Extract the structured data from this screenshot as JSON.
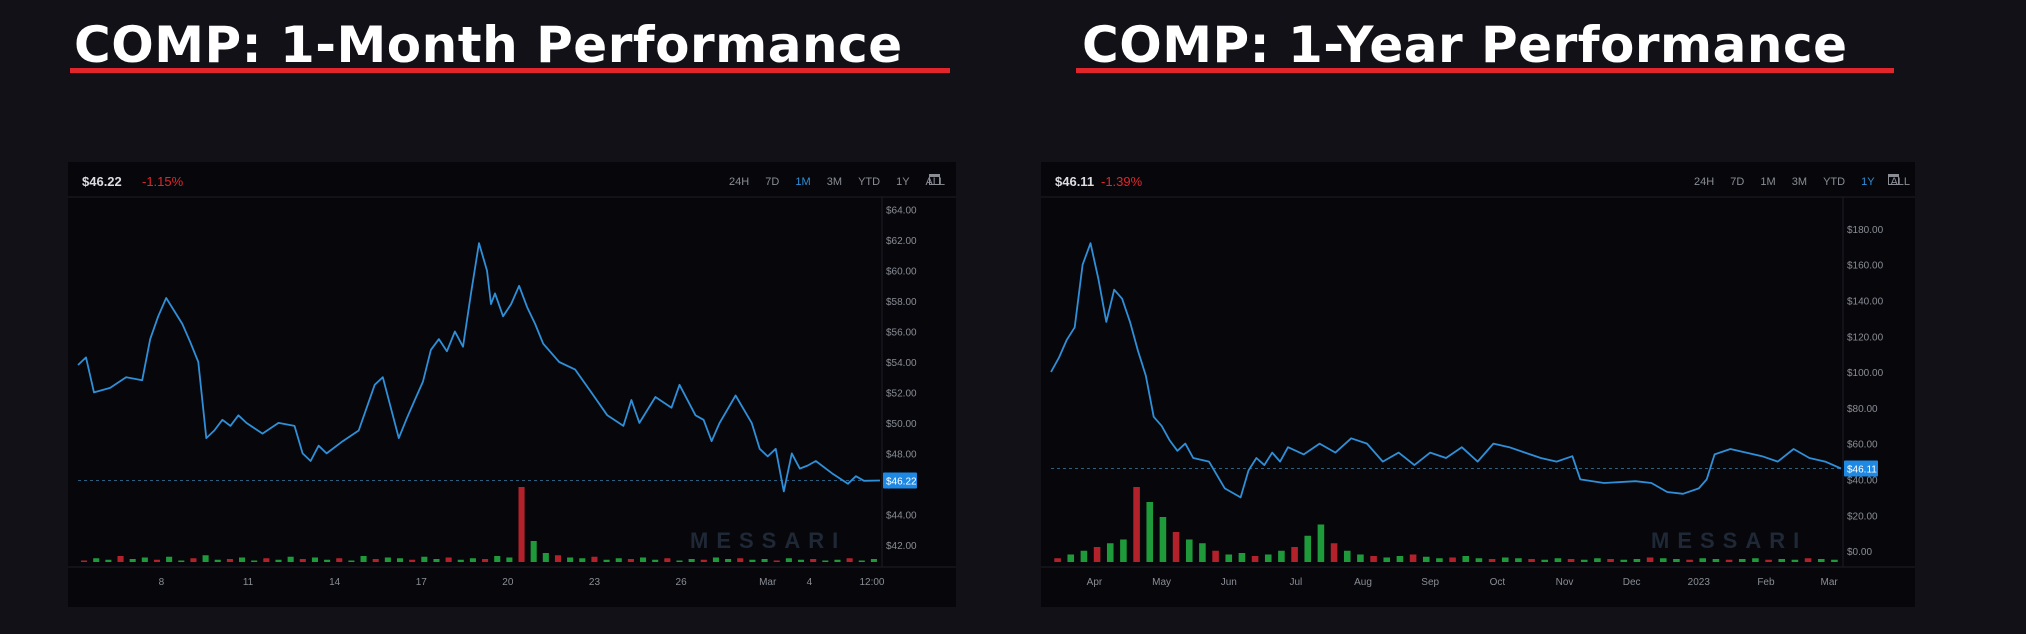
{
  "titles": [
    {
      "text": "COMP: 1-Month Performance"
    },
    {
      "text": "COMP: 1-Year Performance"
    }
  ],
  "colors": {
    "background": "#111117",
    "panel": "#07070b",
    "accent_red": "#e0262b",
    "line": "#2f8fd8",
    "active_range": "#2f8fd8",
    "negative": "#e0262b",
    "volume_green": "#1f9a3a",
    "volume_red": "#b3222a",
    "tag_bg": "#1e88e5"
  },
  "panels": [
    {
      "price": "$46.22",
      "change": "-1.15%",
      "ranges": [
        "24H",
        "7D",
        "1M",
        "3M",
        "YTD",
        "1Y",
        "ALL"
      ],
      "active_range": "1M",
      "calendar_icon": "calendar-icon",
      "watermark": "MESSARI",
      "current_tag": "$46.22"
    },
    {
      "price": "$46.11",
      "change": "-1.39%",
      "ranges": [
        "24H",
        "7D",
        "1M",
        "3M",
        "YTD",
        "1Y",
        "ALL"
      ],
      "active_range": "1Y",
      "calendar_icon": "calendar-icon",
      "watermark": "MESSARI",
      "current_tag": "$46.11"
    }
  ],
  "chart_data": [
    {
      "type": "line",
      "title": "COMP: 1-Month Performance",
      "ylim": [
        41,
        64.5
      ],
      "y_ticks": [
        64,
        62,
        60,
        58,
        56,
        54,
        52,
        50,
        48,
        46,
        44,
        42
      ],
      "y_tick_labels": [
        "$64.00",
        "$62.00",
        "$60.00",
        "$58.00",
        "$56.00",
        "$54.00",
        "$52.00",
        "$50.00",
        "$48.00",
        "$46.00",
        "$44.00",
        "$42.00"
      ],
      "x_tick_labels": [
        "8",
        "11",
        "14",
        "17",
        "20",
        "23",
        "26",
        "Mar",
        "4",
        "12:00"
      ],
      "x_tick_positions": [
        0.104,
        0.212,
        0.32,
        0.428,
        0.536,
        0.644,
        0.752,
        0.86,
        0.912,
        0.99
      ],
      "current_value": 46.22,
      "series": [
        {
          "x": [
            0,
            0.01,
            0.02,
            0.04,
            0.06,
            0.08,
            0.09,
            0.1,
            0.11,
            0.13,
            0.14,
            0.15,
            0.16,
            0.17,
            0.18,
            0.19,
            0.2,
            0.21,
            0.23,
            0.25,
            0.27,
            0.28,
            0.29,
            0.3,
            0.31,
            0.33,
            0.35,
            0.37,
            0.38,
            0.39,
            0.4,
            0.41,
            0.42,
            0.43,
            0.44,
            0.45,
            0.46,
            0.47,
            0.48,
            0.49,
            0.5,
            0.51,
            0.515,
            0.52,
            0.53,
            0.54,
            0.55,
            0.56,
            0.57,
            0.58,
            0.6,
            0.62,
            0.64,
            0.66,
            0.68,
            0.69,
            0.7,
            0.72,
            0.74,
            0.75,
            0.77,
            0.78,
            0.79,
            0.8,
            0.82,
            0.84,
            0.85,
            0.86,
            0.87,
            0.88,
            0.89,
            0.9,
            0.91,
            0.92,
            0.94,
            0.96,
            0.97,
            0.98,
            1.0
          ],
          "y": [
            53.8,
            54.3,
            52.0,
            52.3,
            53.0,
            52.8,
            55.5,
            57.0,
            58.2,
            56.5,
            55.3,
            54.0,
            49.0,
            49.5,
            50.2,
            49.8,
            50.5,
            50.0,
            49.3,
            50.0,
            49.8,
            48.0,
            47.5,
            48.5,
            48.0,
            48.8,
            49.5,
            52.5,
            53.0,
            51.0,
            49.0,
            50.3,
            51.5,
            52.7,
            54.8,
            55.5,
            54.7,
            56.0,
            55.0,
            58.5,
            61.8,
            60.0,
            57.8,
            58.5,
            57.0,
            57.8,
            59.0,
            57.6,
            56.5,
            55.2,
            54.0,
            53.5,
            52.0,
            50.5,
            49.8,
            51.5,
            50.0,
            51.7,
            51.0,
            52.5,
            50.5,
            50.2,
            48.8,
            50.0,
            51.8,
            50.0,
            48.3,
            47.8,
            48.3,
            45.5,
            48.0,
            47.0,
            47.2,
            47.5,
            46.7,
            46.0,
            46.5,
            46.2,
            46.22
          ]
        }
      ],
      "volume": [
        0.02,
        0.05,
        0.03,
        0.08,
        0.04,
        0.06,
        0.03,
        0.07,
        0.02,
        0.05,
        0.09,
        0.03,
        0.04,
        0.06,
        0.02,
        0.05,
        0.03,
        0.07,
        0.04,
        0.06,
        0.03,
        0.05,
        0.02,
        0.08,
        0.04,
        0.06,
        0.05,
        0.03,
        0.07,
        0.04,
        0.06,
        0.03,
        0.05,
        0.04,
        0.08,
        0.06,
        1.0,
        0.28,
        0.12,
        0.09,
        0.06,
        0.05,
        0.07,
        0.03,
        0.05,
        0.04,
        0.06,
        0.03,
        0.05,
        0.02,
        0.04,
        0.03,
        0.06,
        0.04,
        0.05,
        0.03,
        0.04,
        0.02,
        0.05,
        0.03,
        0.04,
        0.02,
        0.03,
        0.05,
        0.02,
        0.04
      ]
    },
    {
      "type": "line",
      "title": "COMP: 1-Year Performance",
      "ylim": [
        -5,
        195
      ],
      "y_ticks": [
        180,
        160,
        140,
        120,
        100,
        80,
        60,
        40,
        20,
        0
      ],
      "y_tick_labels": [
        "$180.00",
        "$160.00",
        "$140.00",
        "$120.00",
        "$100.00",
        "$80.00",
        "$60.00",
        "$40.00",
        "$20.00",
        "$0.00"
      ],
      "x_tick_labels": [
        "Apr",
        "May",
        "Jun",
        "Jul",
        "Aug",
        "Sep",
        "Oct",
        "Nov",
        "Dec",
        "2023",
        "Feb",
        "Mar"
      ],
      "x_tick_positions": [
        0.055,
        0.14,
        0.225,
        0.31,
        0.395,
        0.48,
        0.565,
        0.65,
        0.735,
        0.82,
        0.905,
        0.985
      ],
      "current_value": 46.11,
      "series": [
        {
          "x": [
            0,
            0.01,
            0.02,
            0.03,
            0.04,
            0.05,
            0.06,
            0.07,
            0.08,
            0.09,
            0.1,
            0.11,
            0.12,
            0.13,
            0.14,
            0.15,
            0.16,
            0.17,
            0.18,
            0.2,
            0.22,
            0.24,
            0.25,
            0.26,
            0.27,
            0.28,
            0.29,
            0.3,
            0.32,
            0.34,
            0.36,
            0.38,
            0.4,
            0.42,
            0.44,
            0.46,
            0.48,
            0.5,
            0.52,
            0.54,
            0.56,
            0.58,
            0.6,
            0.62,
            0.64,
            0.66,
            0.67,
            0.7,
            0.74,
            0.76,
            0.78,
            0.8,
            0.82,
            0.83,
            0.84,
            0.86,
            0.88,
            0.9,
            0.92,
            0.94,
            0.96,
            0.98,
            1.0
          ],
          "y": [
            100,
            108,
            118,
            125,
            160,
            172,
            152,
            128,
            146,
            141,
            128,
            112,
            98,
            75,
            70,
            62,
            56,
            60,
            52,
            50,
            35,
            30,
            45,
            52,
            48,
            55,
            50,
            58,
            54,
            60,
            55,
            63,
            60,
            50,
            55,
            48,
            55,
            52,
            58,
            50,
            60,
            58,
            55,
            52,
            50,
            53,
            40,
            38,
            39,
            38,
            33,
            32,
            35,
            40,
            54,
            57,
            55,
            53,
            50,
            57,
            52,
            50,
            46.11
          ]
        }
      ],
      "volume": [
        0.05,
        0.1,
        0.15,
        0.2,
        0.25,
        0.3,
        1.0,
        0.8,
        0.6,
        0.4,
        0.3,
        0.25,
        0.15,
        0.1,
        0.12,
        0.08,
        0.1,
        0.15,
        0.2,
        0.35,
        0.5,
        0.25,
        0.15,
        0.1,
        0.08,
        0.06,
        0.08,
        0.1,
        0.07,
        0.05,
        0.06,
        0.08,
        0.05,
        0.04,
        0.06,
        0.05,
        0.04,
        0.03,
        0.05,
        0.04,
        0.03,
        0.05,
        0.04,
        0.03,
        0.04,
        0.06,
        0.05,
        0.04,
        0.03,
        0.05,
        0.04,
        0.03,
        0.04,
        0.05,
        0.03,
        0.04,
        0.03,
        0.05,
        0.04,
        0.03
      ]
    }
  ]
}
